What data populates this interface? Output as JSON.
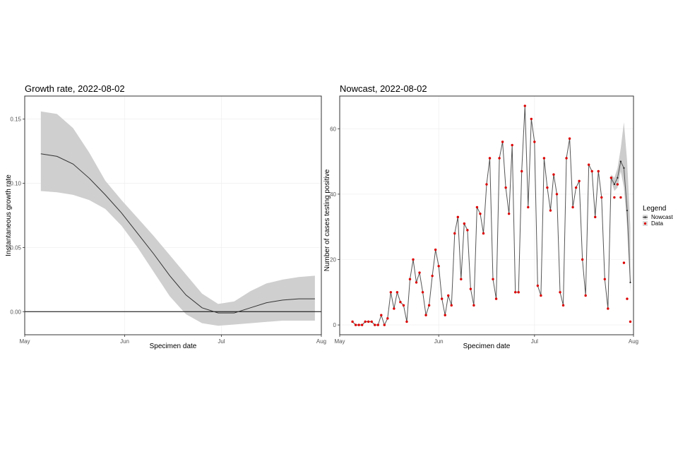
{
  "chart_data": [
    {
      "type": "line",
      "title": "Growth rate, 2022-08-02",
      "xlabel": "Specimen date",
      "ylabel": "Instantaneous growth rate",
      "x_ticks": [
        "May",
        "Jun",
        "Jul",
        "Aug"
      ],
      "y_ticks": [
        "0.00",
        "0.05",
        "0.10",
        "0.15"
      ],
      "ylim": [
        -0.018,
        0.168
      ],
      "xlim": [
        "2022-05-01",
        "2022-08-01"
      ],
      "reference_line": 0.0,
      "series": [
        {
          "x": [
            "2022-05-06",
            "2022-05-11",
            "2022-05-16",
            "2022-05-21",
            "2022-05-26",
            "2022-05-31",
            "2022-06-05",
            "2022-06-10",
            "2022-06-15",
            "2022-06-20",
            "2022-06-25",
            "2022-06-30",
            "2022-07-05",
            "2022-07-10",
            "2022-07-15",
            "2022-07-20",
            "2022-07-25",
            "2022-07-30"
          ],
          "y": [
            0.123,
            0.121,
            0.115,
            0.104,
            0.091,
            0.077,
            0.061,
            0.045,
            0.028,
            0.013,
            0.003,
            -0.001,
            -0.001,
            0.003,
            0.007,
            0.009,
            0.01,
            0.01
          ],
          "lower": [
            0.094,
            0.093,
            0.091,
            0.087,
            0.08,
            0.067,
            0.05,
            0.031,
            0.012,
            -0.002,
            -0.009,
            -0.011,
            -0.01,
            -0.009,
            -0.008,
            -0.007,
            -0.007,
            -0.007
          ],
          "upper": [
            0.156,
            0.154,
            0.143,
            0.124,
            0.102,
            0.087,
            0.073,
            0.059,
            0.044,
            0.029,
            0.014,
            0.006,
            0.008,
            0.016,
            0.022,
            0.025,
            0.027,
            0.028
          ]
        }
      ],
      "colors": {
        "line": "#333333",
        "ribbon": "#cfcfcf",
        "zero": "#000000"
      },
      "grid": true
    },
    {
      "type": "line",
      "title": "Nowcast, 2022-08-02",
      "xlabel": "Specimen date",
      "ylabel": "Number of cases testing positive",
      "x_ticks": [
        "May",
        "Jun",
        "Jul",
        "Aug"
      ],
      "y_ticks": [
        "0",
        "20",
        "40",
        "60"
      ],
      "ylim": [
        -3,
        70
      ],
      "xlim": [
        "2022-05-01",
        "2022-08-01"
      ],
      "legend": {
        "title": "Legend",
        "items": [
          "Nowcast",
          "Data"
        ],
        "position": "right"
      },
      "start_date": "2022-05-05",
      "data_points": [
        1,
        0,
        0,
        0,
        1,
        1,
        1,
        0,
        0,
        3,
        0,
        2,
        10,
        5,
        10,
        7,
        6,
        1,
        14,
        20,
        13,
        16,
        10,
        3,
        6,
        15,
        23,
        18,
        8,
        3,
        9,
        6,
        28,
        33,
        14,
        31,
        29,
        11,
        6,
        36,
        34,
        28,
        43,
        51,
        14,
        8,
        51,
        56,
        42,
        34,
        55,
        10,
        10,
        47,
        67,
        36,
        63,
        56,
        12,
        9,
        51,
        42,
        35,
        46,
        40,
        10,
        6,
        51,
        57,
        36,
        42,
        44,
        20,
        9,
        49,
        47,
        33,
        47,
        39,
        14,
        5,
        45,
        39,
        43,
        39,
        19,
        8,
        1
      ],
      "nowcast_tail": [
        45,
        43,
        45,
        50,
        48,
        35,
        13
      ],
      "nowcast_band_upper": [
        46,
        45,
        48,
        54,
        62,
        50,
        30
      ],
      "nowcast_band_lower": [
        44,
        41,
        42,
        47,
        42,
        30,
        10
      ],
      "colors": {
        "line": "#555555",
        "point": "#dd0000",
        "band": "#aaaaaa"
      },
      "grid": true
    }
  ]
}
